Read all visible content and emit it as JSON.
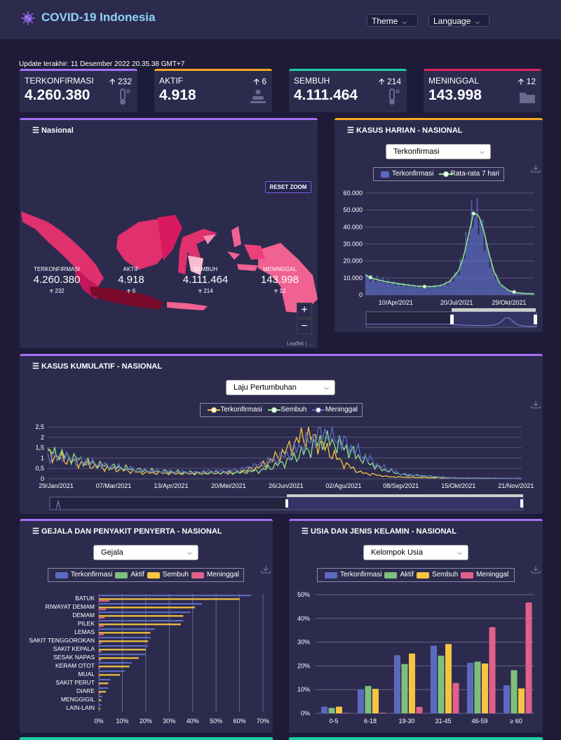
{
  "app": {
    "title": "COVID-19 Indonesia",
    "theme_label": "Theme",
    "language_label": "Language"
  },
  "update_text": "Update terakhir: 11 Desember 2022 20.35.38 GMT+7",
  "colors": {
    "confirmed": "#a371f7",
    "active": "#f5a623",
    "recovered": "#1ccca5",
    "deaths": "#e0245e",
    "series_confirmed": "#5b6abf",
    "series_active": "#7ec07a",
    "series_recovered": "#f5c542",
    "series_deaths": "#e0608a"
  },
  "stats": [
    {
      "label": "TERKONFIRMASI",
      "value": "4.260.380",
      "delta": "232",
      "icon": "thermometer-icon"
    },
    {
      "label": "AKTIF",
      "value": "4.918",
      "delta": "6",
      "icon": "patient-bed-icon"
    },
    {
      "label": "SEMBUH",
      "value": "4.111.464",
      "delta": "214",
      "icon": "thermometer-icon"
    },
    {
      "label": "MENINGGAL",
      "value": "143.998",
      "delta": "12",
      "icon": "folder-icon"
    }
  ],
  "nasional": {
    "title": "Nasional",
    "stats": [
      {
        "label": "TERKONFIRMASI",
        "value": "4.260.380",
        "delta": "232"
      },
      {
        "label": "AKTIF",
        "value": "4.918",
        "delta": "6"
      },
      {
        "label": "SEMBUH",
        "value": "4.111.464",
        "delta": "214"
      },
      {
        "label": "MENINGGAL",
        "value": "143.998",
        "delta": "12"
      }
    ],
    "reset_zoom": "RESET ZOOM",
    "zoom_in": "+",
    "zoom_out": "−",
    "attribution": "Leaflet | ..."
  },
  "harian": {
    "title": "KASUS HARIAN - NASIONAL",
    "select": "Terkonfirmasi",
    "legend": [
      "Terkonfirmasi",
      "Rata-rata 7 hari"
    ]
  },
  "kumulatif": {
    "title": "KASUS KUMULATIF - NASIONAL",
    "select": "Laju Pertumbuhan",
    "legend": [
      "Terkonfirmasi",
      "Sembuh",
      "Meninggal"
    ]
  },
  "gejala": {
    "title": "GEJALA DAN PENYAKIT PENYERTA - NASIONAL",
    "select": "Gejala",
    "legend": [
      "Terkonfirmasi",
      "Aktif",
      "Sembuh",
      "Meninggal"
    ]
  },
  "usia": {
    "title": "USIA DAN JENIS KELAMIN - NASIONAL",
    "select": "Kelompok Usia",
    "legend": [
      "Terkonfirmasi",
      "Aktif",
      "Sembuh",
      "Meninggal"
    ]
  },
  "chart_data": [
    {
      "id": "harian",
      "type": "bar",
      "title": "KASUS HARIAN - NASIONAL",
      "series": [
        {
          "name": "Terkonfirmasi"
        },
        {
          "name": "Rata-rata 7 hari"
        }
      ],
      "ylim": [
        0,
        60000
      ],
      "yticks": [
        "0",
        "10.000",
        "20.000",
        "30.000",
        "40.000",
        "50.000",
        "60.000"
      ],
      "xticks": [
        "10/Apr/2021",
        "20/Jul/2021",
        "29/Okt/2021"
      ],
      "avg_profile": [
        [
          0,
          11500
        ],
        [
          0.05,
          9500
        ],
        [
          0.12,
          7800
        ],
        [
          0.2,
          6500
        ],
        [
          0.3,
          5200
        ],
        [
          0.38,
          4800
        ],
        [
          0.45,
          5500
        ],
        [
          0.5,
          8000
        ],
        [
          0.55,
          14000
        ],
        [
          0.58,
          22000
        ],
        [
          0.61,
          35000
        ],
        [
          0.64,
          48000
        ],
        [
          0.67,
          47000
        ],
        [
          0.7,
          38000
        ],
        [
          0.73,
          25000
        ],
        [
          0.76,
          14000
        ],
        [
          0.8,
          6000
        ],
        [
          0.85,
          2500
        ],
        [
          0.9,
          1200
        ],
        [
          0.95,
          800
        ],
        [
          1,
          600
        ]
      ]
    },
    {
      "id": "kumulatif",
      "type": "line",
      "title": "KASUS KUMULATIF - NASIONAL",
      "series": [
        {
          "name": "Terkonfirmasi"
        },
        {
          "name": "Sembuh"
        },
        {
          "name": "Meninggal"
        }
      ],
      "ylim": [
        0,
        2.5
      ],
      "yticks": [
        "0",
        "0,5",
        "1",
        "1,5",
        "2",
        "2,5"
      ],
      "xticks": [
        "29/Jan/2021",
        "07/Mar/2021",
        "13/Apr/2021",
        "20/Mei/2021",
        "26/Jun/2021",
        "02/Agu/2021",
        "08/Sep/2021",
        "15/Okt/2021",
        "21/Nov/2021"
      ],
      "profiles": [
        [
          [
            0,
            1.2
          ],
          [
            0.04,
            0.9
          ],
          [
            0.1,
            0.6
          ],
          [
            0.2,
            0.3
          ],
          [
            0.3,
            0.25
          ],
          [
            0.4,
            0.3
          ],
          [
            0.45,
            0.6
          ],
          [
            0.5,
            1.3
          ],
          [
            0.53,
            1.9
          ],
          [
            0.55,
            2.1
          ],
          [
            0.58,
            1.6
          ],
          [
            0.62,
            0.8
          ],
          [
            0.66,
            0.3
          ],
          [
            0.72,
            0.1
          ],
          [
            0.8,
            0.05
          ],
          [
            1,
            0.02
          ]
        ],
        [
          [
            0,
            1.3
          ],
          [
            0.04,
            1.1
          ],
          [
            0.1,
            0.7
          ],
          [
            0.2,
            0.4
          ],
          [
            0.3,
            0.3
          ],
          [
            0.4,
            0.3
          ],
          [
            0.45,
            0.4
          ],
          [
            0.5,
            0.8
          ],
          [
            0.55,
            1.4
          ],
          [
            0.58,
            1.9
          ],
          [
            0.62,
            1.6
          ],
          [
            0.66,
            1.0
          ],
          [
            0.7,
            0.5
          ],
          [
            0.75,
            0.2
          ],
          [
            0.85,
            0.05
          ],
          [
            1,
            0.02
          ]
        ],
        [
          [
            0,
            1.1
          ],
          [
            0.04,
            1.0
          ],
          [
            0.1,
            0.7
          ],
          [
            0.2,
            0.4
          ],
          [
            0.3,
            0.3
          ],
          [
            0.4,
            0.4
          ],
          [
            0.45,
            0.7
          ],
          [
            0.5,
            1.1
          ],
          [
            0.55,
            1.8
          ],
          [
            0.58,
            2.3
          ],
          [
            0.62,
            1.8
          ],
          [
            0.66,
            1.2
          ],
          [
            0.7,
            0.6
          ],
          [
            0.75,
            0.2
          ],
          [
            0.85,
            0.05
          ],
          [
            1,
            0.02
          ]
        ]
      ]
    },
    {
      "id": "gejala",
      "type": "bar",
      "orientation": "horizontal",
      "title": "GEJALA DAN PENYAKIT PENYERTA - NASIONAL",
      "categories": [
        "BATUK",
        "RIWAYAT DEMAM",
        "DEMAM",
        "PILEK",
        "LEMAS",
        "SAKIT TENGGOROKAN",
        "SAKIT KEPALA",
        "SESAK NAPAS",
        "KERAM OTOT",
        "MUAL",
        "SAKIT PERUT",
        "DIARE",
        "MENGGIGIL",
        "LAIN-LAIN"
      ],
      "series": [
        {
          "name": "Terkonfirmasi",
          "values": [
            65,
            44,
            39,
            36,
            24,
            22,
            21,
            20,
            14,
            11,
            5,
            4,
            1.5,
            1
          ]
        },
        {
          "name": "Aktif",
          "values": [
            0,
            0,
            0,
            0,
            0,
            0,
            0,
            0,
            0,
            0,
            0,
            0,
            0,
            0
          ]
        },
        {
          "name": "Sembuh",
          "values": [
            60,
            41,
            36,
            35,
            22,
            21,
            20,
            17,
            13,
            9,
            4,
            3,
            1,
            0.5
          ]
        },
        {
          "name": "Meninggal",
          "values": [
            4.5,
            3,
            2.5,
            2,
            2,
            1,
            1,
            1,
            0.5,
            0.3,
            0.3,
            0.5,
            0.1,
            0.1
          ]
        }
      ],
      "xticks": [
        "0%",
        "10%",
        "20%",
        "30%",
        "40%",
        "50%",
        "60%",
        "70%"
      ],
      "xlim": [
        0,
        70
      ]
    },
    {
      "id": "usia",
      "type": "bar",
      "title": "USIA DAN JENIS KELAMIN - NASIONAL",
      "categories": [
        "0-5",
        "6-18",
        "19-30",
        "31-45",
        "46-59",
        "≥ 60"
      ],
      "series": [
        {
          "name": "Terkonfirmasi",
          "values": [
            2.8,
            10,
            24.5,
            28.5,
            21.3,
            11.8
          ]
        },
        {
          "name": "Aktif",
          "values": [
            2.3,
            11.5,
            20.8,
            24.3,
            21.8,
            18.2
          ]
        },
        {
          "name": "Sembuh",
          "values": [
            2.8,
            10.3,
            25.2,
            29.2,
            21,
            10.5
          ]
        },
        {
          "name": "Meninggal",
          "values": [
            0.2,
            0.3,
            2.7,
            12.8,
            36.3,
            46.7
          ]
        }
      ],
      "yticks": [
        "0%",
        "10%",
        "20%",
        "30%",
        "40%",
        "50%"
      ],
      "ylim": [
        0,
        50
      ]
    }
  ]
}
